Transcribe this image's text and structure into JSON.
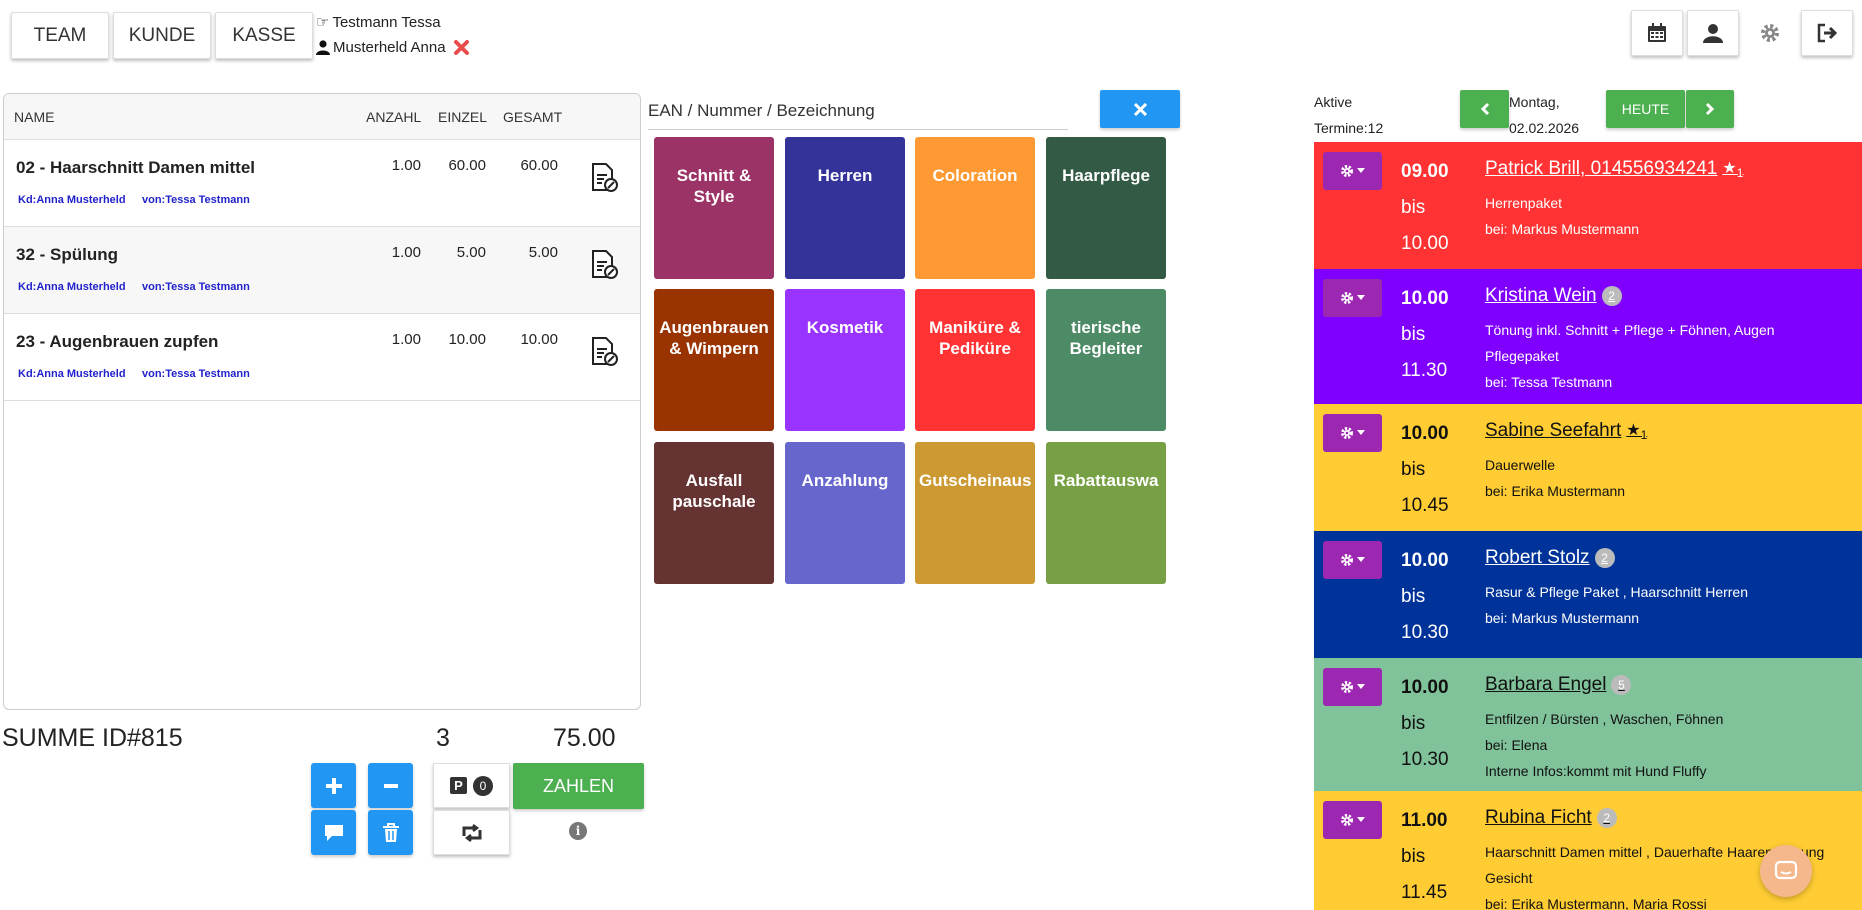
{
  "topbar": {
    "buttons": [
      "TEAM",
      "KUNDE",
      "KASSE"
    ],
    "staff": "Testmann Tessa",
    "customer": "Musterheld Anna"
  },
  "cart": {
    "headers": {
      "name": "NAME",
      "anzahl": "ANZAHL",
      "einzel": "EINZEL",
      "gesamt": "GESAMT"
    },
    "items": [
      {
        "name": "02 - Haarschnitt Damen mittel",
        "anzahl": "1.00",
        "einzel": "60.00",
        "gesamt": "60.00",
        "kunde": "Kd:Anna Musterheld",
        "von": "von:Tessa Testmann"
      },
      {
        "name": "32 - Spülung",
        "anzahl": "1.00",
        "einzel": "5.00",
        "gesamt": "5.00",
        "kunde": "Kd:Anna Musterheld",
        "von": "von:Tessa Testmann"
      },
      {
        "name": "23 - Augenbrauen zupfen",
        "anzahl": "1.00",
        "einzel": "10.00",
        "gesamt": "10.00",
        "kunde": "Kd:Anna Musterheld",
        "von": "von:Tessa Testmann"
      }
    ],
    "summe_label": "SUMME ID#815",
    "summe_count": "3",
    "summe_total": "75.00",
    "parked_count": "0",
    "pay_label": "ZAHLEN"
  },
  "search": {
    "placeholder": "EAN / Nummer / Bezeichnung"
  },
  "tiles": [
    {
      "label": "Schnitt &\nStyle",
      "color": "#9b3366"
    },
    {
      "label": "Herren",
      "color": "#333399"
    },
    {
      "label": "Coloration",
      "color": "#ff9933"
    },
    {
      "label": "Haarpflege",
      "color": "#335a44"
    },
    {
      "label": "Augenbrauen\n& Wimpern",
      "color": "#993300"
    },
    {
      "label": "Kosmetik",
      "color": "#9933ff"
    },
    {
      "label": "Maniküre &\nPediküre",
      "color": "#ff3333"
    },
    {
      "label": "tierische\nBegleiter",
      "color": "#4d8a66"
    },
    {
      "label": "Ausfall\npauschale",
      "color": "#663333"
    },
    {
      "label": "Anzahlung",
      "color": "#6666cc"
    },
    {
      "label": "Gutscheinaus",
      "color": "#cc9933"
    },
    {
      "label": "Rabattauswa",
      "color": "#77a045"
    }
  ],
  "calendar": {
    "active_label": "Aktive",
    "active_count": "Termine:12",
    "day": "Montag,",
    "date": "02.02.2026",
    "today_label": "HEUTE",
    "appointments": [
      {
        "start": "09.00",
        "bis": "bis",
        "end": "10.00",
        "customer": "Patrick Brill, 014556934241",
        "star": "★",
        "star_n": "1",
        "badge": "",
        "lines": [
          "Herrenpaket",
          "bei: Markus Mustermann"
        ],
        "color": "#ff3333",
        "text": "#ffffff"
      },
      {
        "start": "10.00",
        "bis": "bis",
        "end": "11.30",
        "customer": "Kristina Wein",
        "star": "",
        "star_n": "",
        "badge": "2",
        "lines": [
          "Tönung inkl. Schnitt + Pflege + Föhnen, Augen",
          "Pflegepaket",
          "bei: Tessa Testmann"
        ],
        "color": "#7f00ff",
        "text": "#ffffff"
      },
      {
        "start": "10.00",
        "bis": "bis",
        "end": "10.45",
        "customer": "Sabine Seefahrt",
        "star": "★",
        "star_n": "1",
        "badge": "",
        "lines": [
          "Dauerwelle",
          "bei: Erika Mustermann"
        ],
        "color": "#ffcc33",
        "text": "#111111"
      },
      {
        "start": "10.00",
        "bis": "bis",
        "end": "10.30",
        "customer": "Robert Stolz",
        "star": "",
        "star_n": "",
        "badge": "2",
        "lines": [
          "Rasur & Pflege Paket , Haarschnitt Herren",
          "bei: Markus Mustermann"
        ],
        "color": "#003399",
        "text": "#ffffff"
      },
      {
        "start": "10.00",
        "bis": "bis",
        "end": "10.30",
        "customer": "Barbara Engel",
        "star": "",
        "star_n": "",
        "badge": "5",
        "lines": [
          "Entfilzen / Bürsten , Waschen, Föhnen",
          "bei: Elena",
          "Interne Infos:kommt mit Hund Fluffy"
        ],
        "color": "#80c29a",
        "text": "#111111"
      },
      {
        "start": "11.00",
        "bis": "bis",
        "end": "11.45",
        "customer": "Rubina Ficht",
        "star": "",
        "star_n": "",
        "badge": "2",
        "lines": [
          "Haarschnitt Damen mittel , Dauerhafte Haarentfernung",
          "Gesicht",
          "bei: Erika Mustermann, Maria Rossi"
        ],
        "color": "#ffcc33",
        "text": "#111111"
      }
    ]
  }
}
